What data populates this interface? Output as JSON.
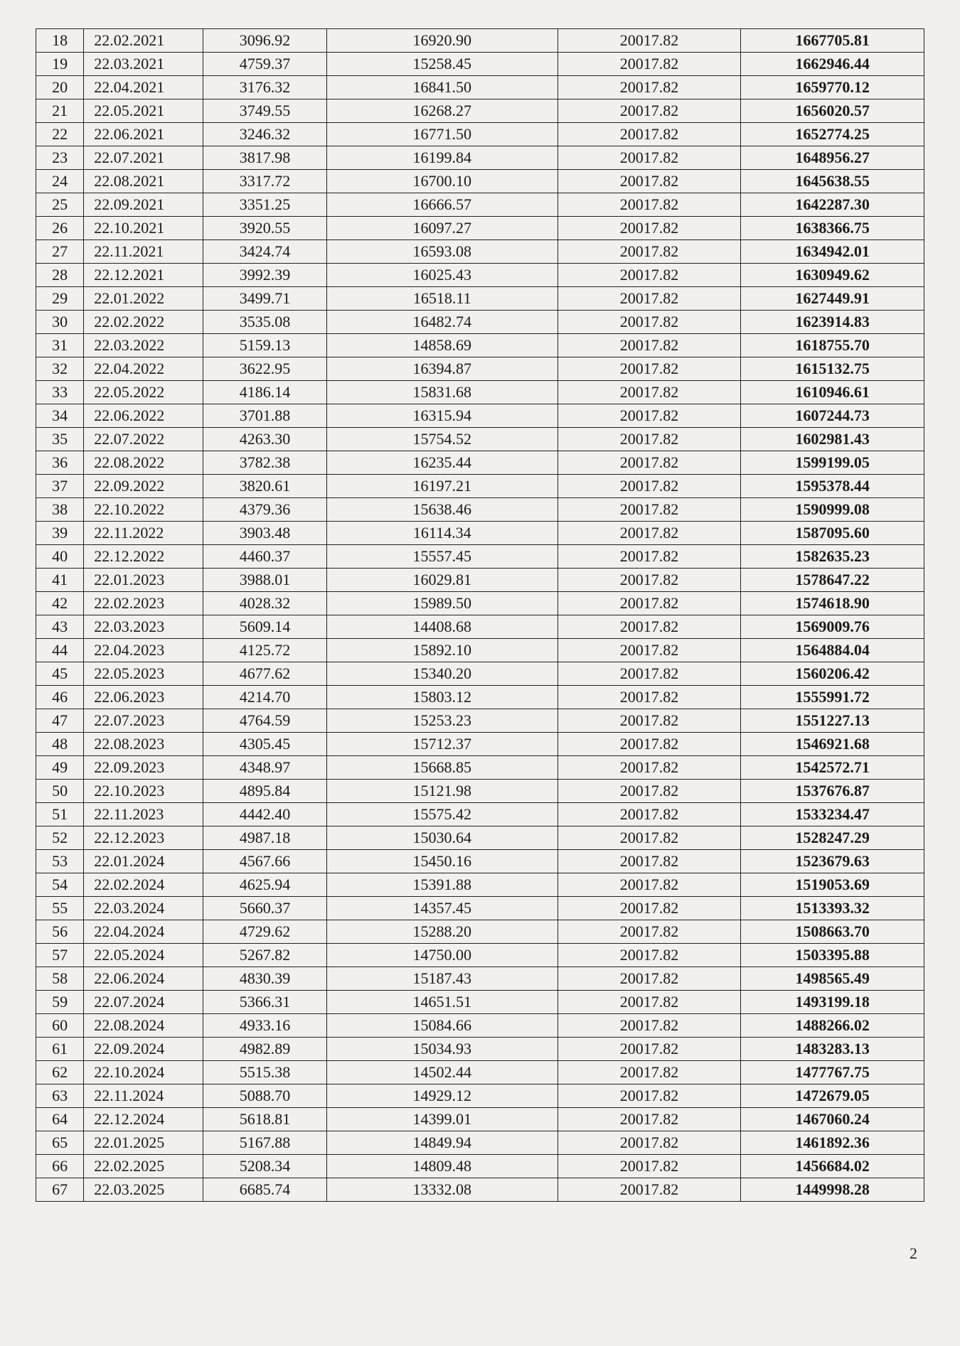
{
  "table": {
    "columns": [
      {
        "class": "col-num"
      },
      {
        "class": "col-date"
      },
      {
        "class": "col-a"
      },
      {
        "class": "col-b"
      },
      {
        "class": "col-c"
      },
      {
        "class": "col-d"
      }
    ],
    "rows": [
      [
        "18",
        "22.02.2021",
        "3096.92",
        "16920.90",
        "20017.82",
        "1667705.81"
      ],
      [
        "19",
        "22.03.2021",
        "4759.37",
        "15258.45",
        "20017.82",
        "1662946.44"
      ],
      [
        "20",
        "22.04.2021",
        "3176.32",
        "16841.50",
        "20017.82",
        "1659770.12"
      ],
      [
        "21",
        "22.05.2021",
        "3749.55",
        "16268.27",
        "20017.82",
        "1656020.57"
      ],
      [
        "22",
        "22.06.2021",
        "3246.32",
        "16771.50",
        "20017.82",
        "1652774.25"
      ],
      [
        "23",
        "22.07.2021",
        "3817.98",
        "16199.84",
        "20017.82",
        "1648956.27"
      ],
      [
        "24",
        "22.08.2021",
        "3317.72",
        "16700.10",
        "20017.82",
        "1645638.55"
      ],
      [
        "25",
        "22.09.2021",
        "3351.25",
        "16666.57",
        "20017.82",
        "1642287.30"
      ],
      [
        "26",
        "22.10.2021",
        "3920.55",
        "16097.27",
        "20017.82",
        "1638366.75"
      ],
      [
        "27",
        "22.11.2021",
        "3424.74",
        "16593.08",
        "20017.82",
        "1634942.01"
      ],
      [
        "28",
        "22.12.2021",
        "3992.39",
        "16025.43",
        "20017.82",
        "1630949.62"
      ],
      [
        "29",
        "22.01.2022",
        "3499.71",
        "16518.11",
        "20017.82",
        "1627449.91"
      ],
      [
        "30",
        "22.02.2022",
        "3535.08",
        "16482.74",
        "20017.82",
        "1623914.83"
      ],
      [
        "31",
        "22.03.2022",
        "5159.13",
        "14858.69",
        "20017.82",
        "1618755.70"
      ],
      [
        "32",
        "22.04.2022",
        "3622.95",
        "16394.87",
        "20017.82",
        "1615132.75"
      ],
      [
        "33",
        "22.05.2022",
        "4186.14",
        "15831.68",
        "20017.82",
        "1610946.61"
      ],
      [
        "34",
        "22.06.2022",
        "3701.88",
        "16315.94",
        "20017.82",
        "1607244.73"
      ],
      [
        "35",
        "22.07.2022",
        "4263.30",
        "15754.52",
        "20017.82",
        "1602981.43"
      ],
      [
        "36",
        "22.08.2022",
        "3782.38",
        "16235.44",
        "20017.82",
        "1599199.05"
      ],
      [
        "37",
        "22.09.2022",
        "3820.61",
        "16197.21",
        "20017.82",
        "1595378.44"
      ],
      [
        "38",
        "22.10.2022",
        "4379.36",
        "15638.46",
        "20017.82",
        "1590999.08"
      ],
      [
        "39",
        "22.11.2022",
        "3903.48",
        "16114.34",
        "20017.82",
        "1587095.60"
      ],
      [
        "40",
        "22.12.2022",
        "4460.37",
        "15557.45",
        "20017.82",
        "1582635.23"
      ],
      [
        "41",
        "22.01.2023",
        "3988.01",
        "16029.81",
        "20017.82",
        "1578647.22"
      ],
      [
        "42",
        "22.02.2023",
        "4028.32",
        "15989.50",
        "20017.82",
        "1574618.90"
      ],
      [
        "43",
        "22.03.2023",
        "5609.14",
        "14408.68",
        "20017.82",
        "1569009.76"
      ],
      [
        "44",
        "22.04.2023",
        "4125.72",
        "15892.10",
        "20017.82",
        "1564884.04"
      ],
      [
        "45",
        "22.05.2023",
        "4677.62",
        "15340.20",
        "20017.82",
        "1560206.42"
      ],
      [
        "46",
        "22.06.2023",
        "4214.70",
        "15803.12",
        "20017.82",
        "1555991.72"
      ],
      [
        "47",
        "22.07.2023",
        "4764.59",
        "15253.23",
        "20017.82",
        "1551227.13"
      ],
      [
        "48",
        "22.08.2023",
        "4305.45",
        "15712.37",
        "20017.82",
        "1546921.68"
      ],
      [
        "49",
        "22.09.2023",
        "4348.97",
        "15668.85",
        "20017.82",
        "1542572.71"
      ],
      [
        "50",
        "22.10.2023",
        "4895.84",
        "15121.98",
        "20017.82",
        "1537676.87"
      ],
      [
        "51",
        "22.11.2023",
        "4442.40",
        "15575.42",
        "20017.82",
        "1533234.47"
      ],
      [
        "52",
        "22.12.2023",
        "4987.18",
        "15030.64",
        "20017.82",
        "1528247.29"
      ],
      [
        "53",
        "22.01.2024",
        "4567.66",
        "15450.16",
        "20017.82",
        "1523679.63"
      ],
      [
        "54",
        "22.02.2024",
        "4625.94",
        "15391.88",
        "20017.82",
        "1519053.69"
      ],
      [
        "55",
        "22.03.2024",
        "5660.37",
        "14357.45",
        "20017.82",
        "1513393.32"
      ],
      [
        "56",
        "22.04.2024",
        "4729.62",
        "15288.20",
        "20017.82",
        "1508663.70"
      ],
      [
        "57",
        "22.05.2024",
        "5267.82",
        "14750.00",
        "20017.82",
        "1503395.88"
      ],
      [
        "58",
        "22.06.2024",
        "4830.39",
        "15187.43",
        "20017.82",
        "1498565.49"
      ],
      [
        "59",
        "22.07.2024",
        "5366.31",
        "14651.51",
        "20017.82",
        "1493199.18"
      ],
      [
        "60",
        "22.08.2024",
        "4933.16",
        "15084.66",
        "20017.82",
        "1488266.02"
      ],
      [
        "61",
        "22.09.2024",
        "4982.89",
        "15034.93",
        "20017.82",
        "1483283.13"
      ],
      [
        "62",
        "22.10.2024",
        "5515.38",
        "14502.44",
        "20017.82",
        "1477767.75"
      ],
      [
        "63",
        "22.11.2024",
        "5088.70",
        "14929.12",
        "20017.82",
        "1472679.05"
      ],
      [
        "64",
        "22.12.2024",
        "5618.81",
        "14399.01",
        "20017.82",
        "1467060.24"
      ],
      [
        "65",
        "22.01.2025",
        "5167.88",
        "14849.94",
        "20017.82",
        "1461892.36"
      ],
      [
        "66",
        "22.02.2025",
        "5208.34",
        "14809.48",
        "20017.82",
        "1456684.02"
      ],
      [
        "67",
        "22.03.2025",
        "6685.74",
        "13332.08",
        "20017.82",
        "1449998.28"
      ]
    ]
  },
  "pageNumber": "2"
}
